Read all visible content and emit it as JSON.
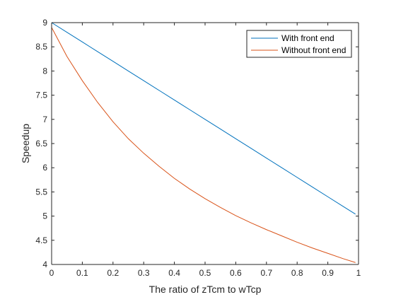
{
  "chart_data": {
    "type": "line",
    "title": "",
    "xlabel": "The ratio of zTcm to wTcp",
    "ylabel": "Speedup",
    "xlim": [
      0,
      1
    ],
    "ylim": [
      4,
      9
    ],
    "x_ticks": [
      "0",
      "0.1",
      "0.2",
      "0.3",
      "0.4",
      "0.5",
      "0.6",
      "0.7",
      "0.8",
      "0.9",
      "1"
    ],
    "y_ticks": [
      "4",
      "4.5",
      "5",
      "5.5",
      "6",
      "6.5",
      "7",
      "7.5",
      "8",
      "8.5",
      "9"
    ],
    "grid": false,
    "legend_position": "top-right",
    "x": [
      0,
      0.05,
      0.1,
      0.15,
      0.2,
      0.25,
      0.3,
      0.35,
      0.4,
      0.45,
      0.5,
      0.55,
      0.6,
      0.65,
      0.7,
      0.75,
      0.8,
      0.85,
      0.9,
      0.95,
      0.99
    ],
    "series": [
      {
        "name": "With front end",
        "color": "#0072BD",
        "values": [
          9.0,
          8.8,
          8.6,
          8.4,
          8.2,
          8.0,
          7.8,
          7.6,
          7.4,
          7.2,
          7.0,
          6.8,
          6.6,
          6.4,
          6.2,
          6.0,
          5.8,
          5.6,
          5.4,
          5.2,
          5.04
        ]
      },
      {
        "name": "Without front end",
        "color": "#D95319",
        "values": [
          8.9,
          8.3,
          7.8,
          7.35,
          6.95,
          6.6,
          6.3,
          6.03,
          5.78,
          5.56,
          5.36,
          5.18,
          5.01,
          4.86,
          4.72,
          4.59,
          4.46,
          4.34,
          4.23,
          4.12,
          4.04
        ]
      }
    ]
  }
}
